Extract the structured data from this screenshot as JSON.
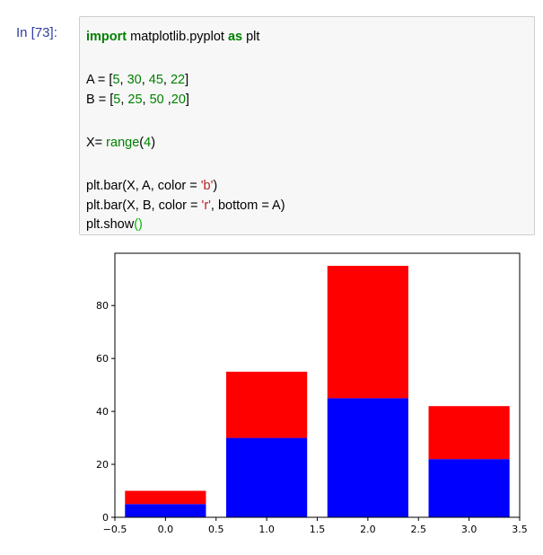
{
  "cell": {
    "prompt": "In [73]:",
    "line1": {
      "kw1": "import",
      "mod": " matplotlib.pyplot ",
      "kw2": "as",
      "alias": " plt"
    },
    "line2": {
      "pre": "A = [",
      "n1": "5",
      "c1": ", ",
      "n2": "30",
      "c2": ", ",
      "n3": "45",
      "c3": ", ",
      "n4": "22",
      "post": "]"
    },
    "line3": {
      "pre": "B = [",
      "n1": "5",
      "c1": ", ",
      "n2": "25",
      "c2": ", ",
      "n3": "50",
      "c3": " ,",
      "n4": "20",
      "post": "]"
    },
    "line4": {
      "pre": "X= ",
      "fn": "range",
      "open": "(",
      "n": "4",
      "close": ")"
    },
    "line5": {
      "pre": "plt.bar(X, A, color = ",
      "s": "'b'",
      "post": ")"
    },
    "line6": {
      "pre": "plt.bar(X, B, color = ",
      "s": "'r'",
      "post": ", bottom = A)"
    },
    "line7": {
      "pre": "plt.show",
      "paren": "()"
    }
  },
  "colors": {
    "series_a": "#0000ff",
    "series_b": "#ff0000"
  },
  "chart_data": {
    "type": "bar",
    "stacked": true,
    "x": [
      0,
      1,
      2,
      3
    ],
    "series": [
      {
        "values": [
          5,
          30,
          45,
          22
        ],
        "color": "#0000ff"
      },
      {
        "values": [
          5,
          25,
          50,
          20
        ],
        "color": "#ff0000"
      }
    ],
    "bar_width": 0.8,
    "xlim": [
      -0.5,
      3.5
    ],
    "ylim": [
      0,
      99.75
    ],
    "xticks": [
      "−0.5",
      "0.0",
      "0.5",
      "1.0",
      "1.5",
      "2.0",
      "2.5",
      "3.0",
      "3.5"
    ],
    "yticks": [
      "0",
      "20",
      "40",
      "60",
      "80"
    ],
    "grid": false
  }
}
